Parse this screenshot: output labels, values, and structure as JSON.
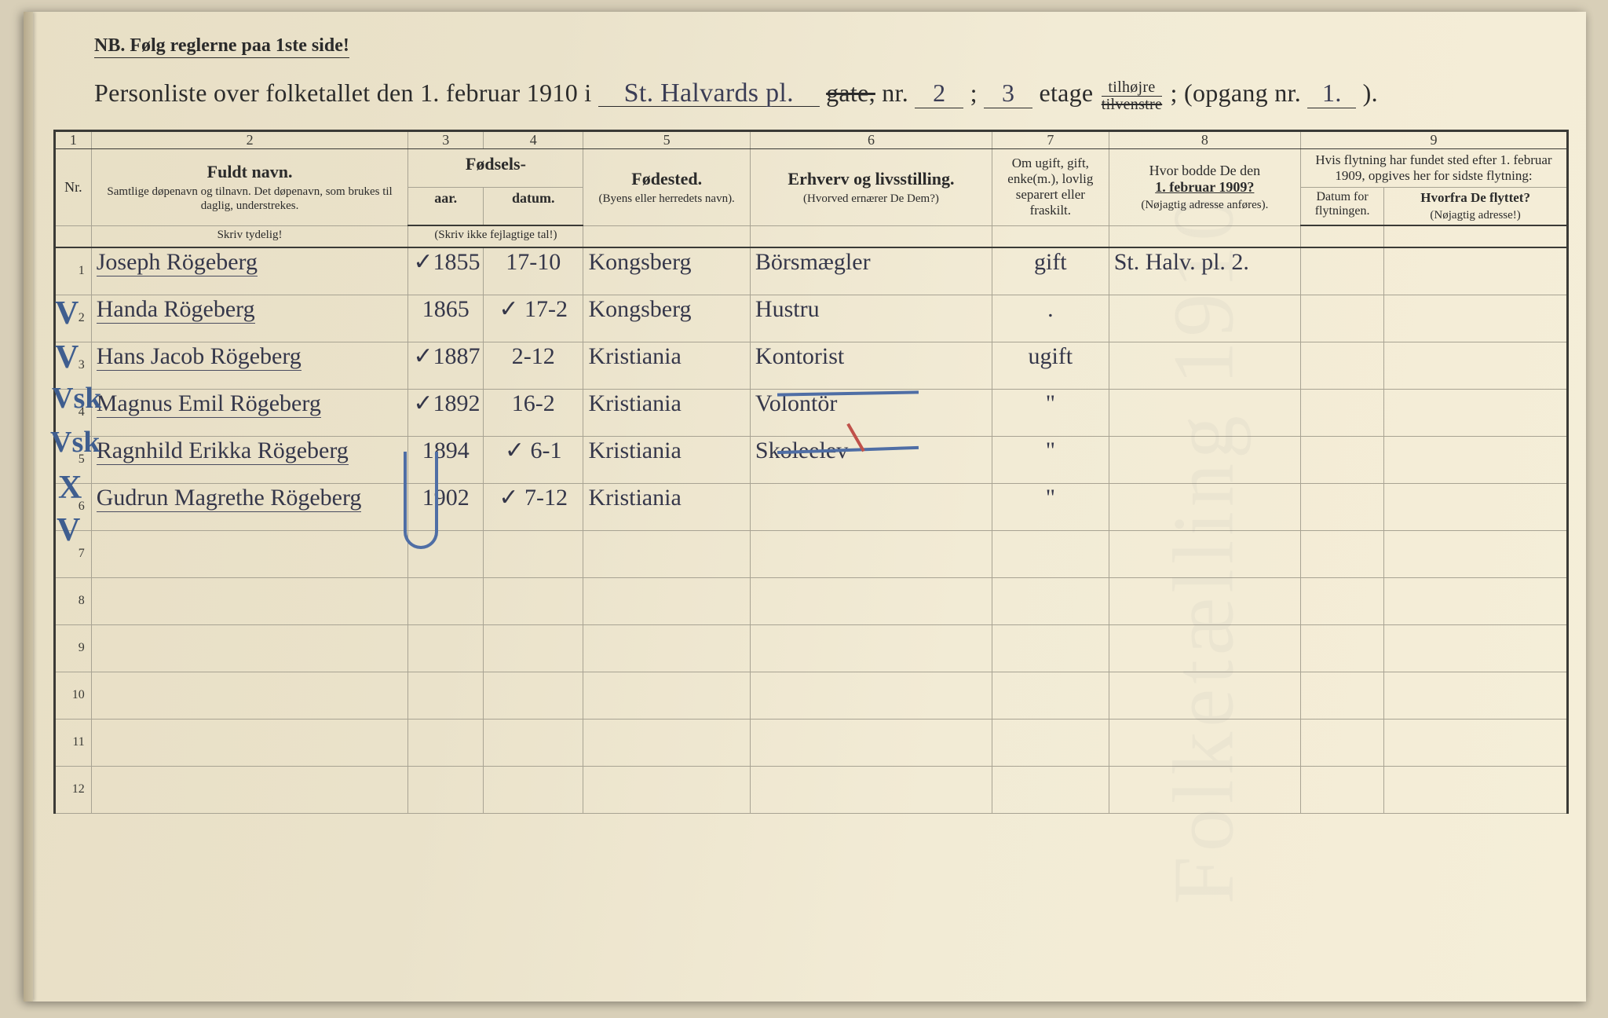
{
  "header": {
    "nb": "NB.  Følg reglerne paa 1ste side!",
    "title_pre": "Personliste over folketallet den 1. februar 1910 i ",
    "street": "St. Halvards pl.",
    "gate_strike": "gate,",
    "nr_label": " nr. ",
    "nr": "2",
    "sep": "  ;  ",
    "etage": "3",
    "etage_label": " etage ",
    "frac_top": "tilhøjre",
    "frac_bot": "tilvenstre",
    "opgang_pre": "; (opgang nr. ",
    "opgang": "1.",
    "opgang_post": ").",
    "bot_strike": true
  },
  "columns": {
    "nums": [
      "1",
      "2",
      "3",
      "4",
      "5",
      "6",
      "7",
      "8",
      "9"
    ],
    "nr": "Nr.",
    "name": {
      "t": "Fuldt navn.",
      "s": "Samtlige døpenavn og tilnavn. Det døpenavn, som brukes til daglig, understrekes.",
      "hint": "Skriv tydelig!"
    },
    "birth": {
      "t": "Fødsels-",
      "a": "aar.",
      "d": "datum.",
      "s": "(Skriv ikke fejlagtige tal!)"
    },
    "place": {
      "t": "Fødested.",
      "s": "(Byens eller herre­dets navn)."
    },
    "occ": {
      "t": "Erhverv og livsstilling.",
      "s": "(Hvorved ernærer De Dem?)"
    },
    "marital": {
      "s": "Om ugift, gift, enke(m.), lovlig separert eller fraskilt."
    },
    "addr": {
      "t": "Hvor bodde De den",
      "b": "1. februar 1909?",
      "s": "(Nøjagtig adresse anføres)."
    },
    "move": {
      "t": "Hvis flytning har fundet sted efter 1. februar 1909, opgives her for sidste flytning:",
      "d": "Datum for flyt­ningen.",
      "w": "Hvorfra De flyttet?",
      "ws": "(Nøjagtig adresse!)"
    }
  },
  "widths": {
    "c1": 44,
    "c2": 380,
    "c3": 90,
    "c4": 120,
    "c5": 200,
    "c6": 290,
    "c7": 140,
    "c8": 230,
    "c9a": 100,
    "c9b": 220
  },
  "rows": [
    {
      "n": "1",
      "name": "Joseph Rögeberg",
      "yr": "1855",
      "date": "17-10",
      "place": "Kongsberg",
      "occ": "Börsmægler",
      "mar": "gift",
      "addr": "St. Halv. pl. 2.",
      "mark": "V",
      "ytick": "✓"
    },
    {
      "n": "2",
      "name": "Handa Rögeberg",
      "yr": "1865",
      "date": "17-2",
      "place": "Kongsberg",
      "occ": "Hustru",
      "mar": ".",
      "addr": "",
      "mark": "V",
      "dtick": "✓"
    },
    {
      "n": "3",
      "name": "Hans Jacob Rögeberg",
      "yr": "1887",
      "date": "2-12",
      "place": "Kristiania",
      "occ": "Kontorist",
      "mar": "ugift",
      "addr": "",
      "mark": "Vsk",
      "ytick": "✓"
    },
    {
      "n": "4",
      "name": "Magnus Emil Rögeberg",
      "yr": "1892",
      "date": "16-2",
      "place": "Kristiania",
      "occ": "Volontör",
      "mar": "\"",
      "addr": "",
      "mark": "Vsk",
      "ytick": "✓"
    },
    {
      "n": "5",
      "name": "Ragnhild Erikka Rögeberg",
      "yr": "1894",
      "date": "6-1",
      "place": "Kristiania",
      "occ": "Skoleelev",
      "mar": "\"",
      "addr": "",
      "mark": "X",
      "dtick": "✓"
    },
    {
      "n": "6",
      "name": "Gudrun Magrethe Rögeberg",
      "yr": "1902",
      "date": "7-12",
      "place": "Kristiania",
      "occ": "",
      "mar": "\"",
      "addr": "",
      "mark": "V",
      "dtick": "✓"
    },
    {
      "n": "7"
    },
    {
      "n": "8"
    },
    {
      "n": "9"
    },
    {
      "n": "10"
    },
    {
      "n": "11"
    },
    {
      "n": "12"
    }
  ],
  "style": {
    "ink": "#35374a",
    "blue": "#4f6ea5",
    "red": "#c0514a",
    "rule": "#a8a393",
    "strong_rule": "#3a3a36",
    "bg": "#ece4cb"
  }
}
